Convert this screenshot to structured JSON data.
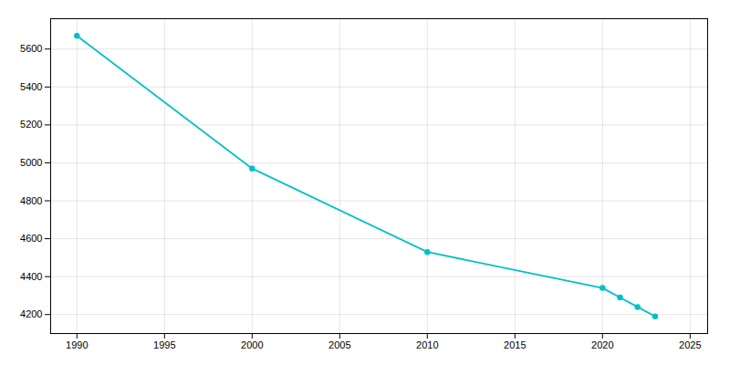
{
  "chart_data": {
    "type": "line",
    "x": [
      1990,
      2000,
      2010,
      2020,
      2021,
      2022,
      2023
    ],
    "values": [
      5670,
      4970,
      4530,
      4340,
      4290,
      4240,
      4190
    ],
    "color": "#00c0c7",
    "marker": "circle",
    "xlim": [
      1988.5,
      2026
    ],
    "ylim": [
      4100,
      5760
    ],
    "xticks": [
      1990,
      1995,
      2000,
      2005,
      2010,
      2015,
      2020,
      2025
    ],
    "yticks": [
      4200,
      4400,
      4600,
      4800,
      5000,
      5200,
      5400,
      5600
    ],
    "grid": true
  }
}
